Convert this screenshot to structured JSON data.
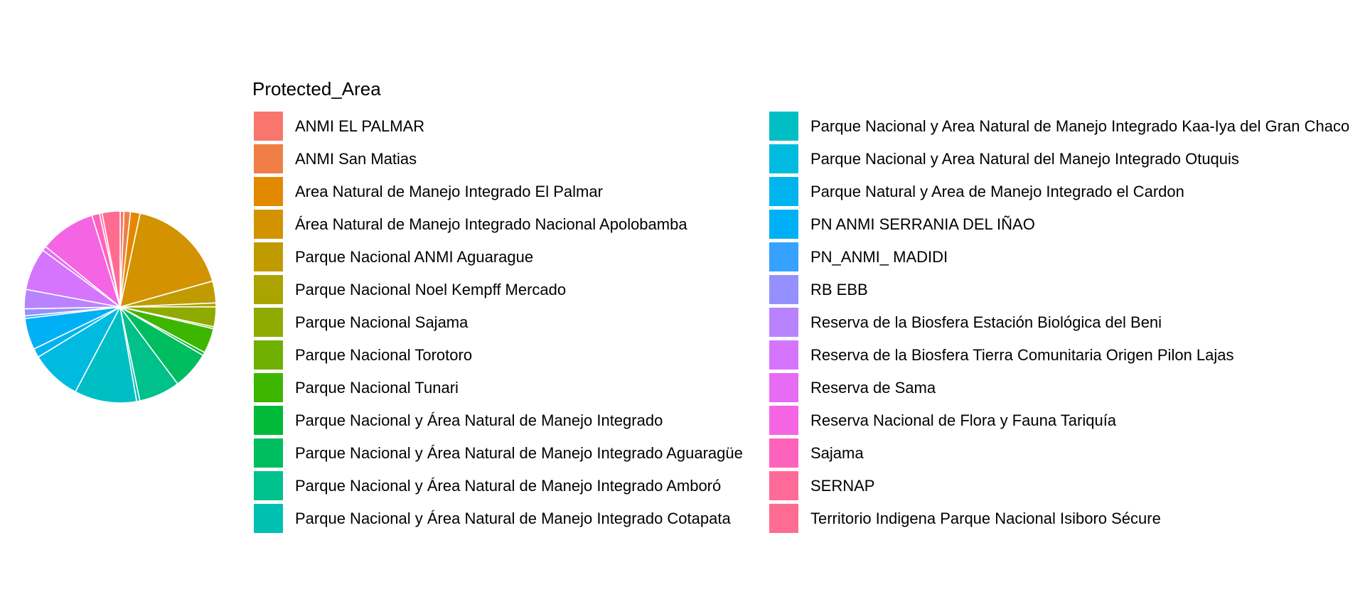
{
  "chart_data": {
    "type": "pie",
    "legend_title": "Protected_Area",
    "legend_placement": "right",
    "categories": [
      "ANMI EL PALMAR",
      "ANMI San Matias",
      "Area Natural de Manejo Integrado El Palmar",
      "Área Natural de Manejo Integrado Nacional Apolobamba",
      "Parque Nacional ANMI Aguarague",
      "Parque Nacional Noel Kempff Mercado",
      "Parque Nacional Sajama",
      "Parque Nacional Torotoro",
      "Parque Nacional Tunari",
      "Parque Nacional y Área Natural de Manejo Integrado",
      "Parque Nacional y Área Natural de Manejo Integrado Aguaragüe",
      "Parque Nacional y Área Natural de Manejo Integrado Amboró",
      "Parque Nacional y Área Natural de Manejo Integrado Cotapata",
      "Parque Nacional y Area Natural de Manejo Integrado Kaa-Iya del Gran Chaco",
      "Parque Nacional y Area Natural del Manejo Integrado Otuquis",
      "Parque Natural y Area de Manejo Integrado el Cardon",
      "PN ANMI SERRANIA DEL IÑAO",
      "PN_ANMI_ MADIDI",
      "RB EBB",
      "Reserva de la Biosfera Estación Biológica del Beni",
      "Reserva de la Biosfera Tierra Comunitaria Origen  Pilon Lajas",
      "Reserva de Sama",
      "Reserva Nacional de Flora y Fauna Tariquía",
      "Sajama",
      "SERNAP",
      "Territorio Indigena Parque Nacional Isiboro Sécure"
    ],
    "colors": [
      "#F8766D",
      "#EF7F46",
      "#E38900",
      "#D39200",
      "#C09B00",
      "#AAA300",
      "#8FAA00",
      "#6FB000",
      "#3DB600",
      "#00BA38",
      "#00BD5F",
      "#00C08B",
      "#00C0B1",
      "#00BFC4",
      "#00BAE0",
      "#00B4EF",
      "#00B0F6",
      "#35A2FF",
      "#9590FF",
      "#B983FF",
      "#D575FE",
      "#E76BF3",
      "#F564E3",
      "#FF62BC",
      "#FF6A98",
      "#FF6C91"
    ],
    "values": [
      0.6,
      1.0,
      1.5,
      16.0,
      3.4,
      0.6,
      3.1,
      0.3,
      3.9,
      0.5,
      5.9,
      6.4,
      0.5,
      9.7,
      7.9,
      1.4,
      4.9,
      0.4,
      1.1,
      3.0,
      6.6,
      0.7,
      8.7,
      1.2,
      0.4,
      2.8
    ],
    "start_angle_deg": 0,
    "direction": "clockwise",
    "xlabel": "",
    "ylabel": "",
    "grid": false
  }
}
